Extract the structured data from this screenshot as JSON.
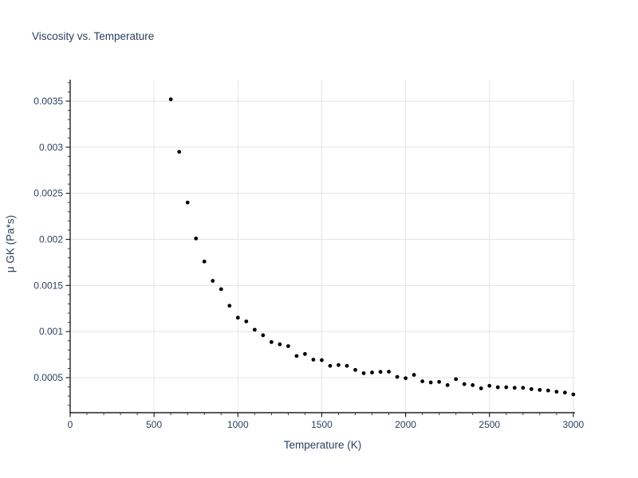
{
  "chart_data": {
    "type": "scatter",
    "title": "Viscosity vs. Temperature",
    "xlabel": "Temperature (K)",
    "ylabel": "μ GK (Pa*s)",
    "x": [
      600,
      650,
      700,
      750,
      800,
      850,
      900,
      950,
      1000,
      1050,
      1100,
      1150,
      1200,
      1250,
      1300,
      1350,
      1400,
      1450,
      1500,
      1550,
      1600,
      1650,
      1700,
      1750,
      1800,
      1850,
      1900,
      1950,
      2000,
      2050,
      2100,
      2150,
      2200,
      2250,
      2300,
      2350,
      2400,
      2450,
      2500,
      2550,
      2600,
      2650,
      2700,
      2750,
      2800,
      2850,
      2900,
      2950,
      3000
    ],
    "y": [
      0.00352,
      0.00295,
      0.0024,
      0.00201,
      0.00176,
      0.00155,
      0.00146,
      0.00128,
      0.00115,
      0.00111,
      0.00102,
      0.00096,
      0.000886,
      0.000862,
      0.000842,
      0.000735,
      0.000757,
      0.000695,
      0.00069,
      0.000628,
      0.000637,
      0.000628,
      0.000584,
      0.000548,
      0.000556,
      0.000563,
      0.000565,
      0.000508,
      0.000494,
      0.00053,
      0.00046,
      0.000448,
      0.000454,
      0.000419,
      0.000484,
      0.00043,
      0.000419,
      0.000384,
      0.000412,
      0.000396,
      0.000396,
      0.00039,
      0.00039,
      0.000376,
      0.000367,
      0.000361,
      0.000347,
      0.000338,
      0.000318
    ],
    "xlim": [
      0,
      3010
    ],
    "ylim": [
      0.00012,
      0.003733
    ],
    "x_ticks": {
      "values": [
        0,
        500,
        1000,
        1500,
        2000,
        2500,
        3000
      ],
      "labels": [
        "0",
        "500",
        "1000",
        "1500",
        "2000",
        "2500",
        "3000"
      ]
    },
    "y_ticks": {
      "values": [
        0.0005,
        0.001,
        0.0015,
        0.002,
        0.0025,
        0.003,
        0.0035
      ],
      "labels": [
        "0.0005",
        "0.001",
        "0.0015",
        "0.002",
        "0.0025",
        "0.003",
        "0.0035"
      ]
    },
    "x_minor_step": 100,
    "y_minor_step": 0.0001,
    "grid": true,
    "legend": false,
    "marker": {
      "color": "#000000",
      "radius": 2.4
    },
    "colors": {
      "background": "#ffffff",
      "grid": "#e3e3e3",
      "axis": "#222222",
      "tick": "#444444",
      "text": "#2a3f5f"
    }
  }
}
